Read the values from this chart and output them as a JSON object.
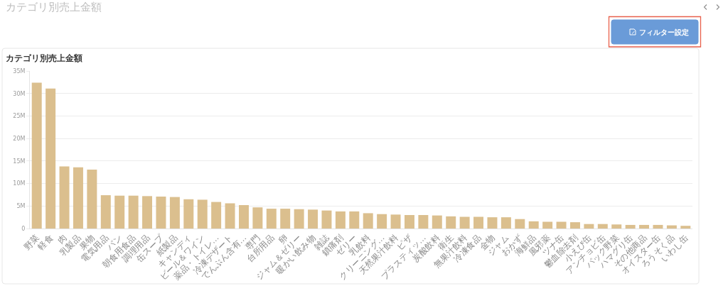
{
  "chart_data": {
    "type": "bar",
    "title": "カテゴリ別売上金額",
    "categories": [
      "野菜",
      "軽食",
      "肉",
      "乳製品",
      "果物",
      "電気用品",
      "パン",
      "朝食用食品",
      "調理用品",
      "缶スープ",
      "紙製品",
      "キャンディ",
      "ビール＆ワイン",
      "薬品・トイレ...",
      "冷凍デザート",
      "でんぷん含有...",
      "専門",
      "台所用品",
      "卵",
      "ジャム＆ゼリー",
      "暖かい飲み物",
      "雑誌",
      "鎮痛剤",
      "ゼリー",
      "乳飲料",
      "クリーニング...",
      "天然果汁飲料",
      "ピザ",
      "プラスティッ...",
      "炭酸飲料",
      "衛生",
      "無果汁飲料",
      "冷凍食品",
      "金物",
      "ジャム",
      "おかず",
      "海鮮品",
      "風邪薬",
      "ツナ缶",
      "鬱血除去剤",
      "小えび缶",
      "アンチョビ缶",
      "パック野菜",
      "ハマグリ缶",
      "その他商品",
      "オイスター缶",
      "ろうそく品",
      "いわし缶"
    ],
    "values": [
      32400000,
      31100000,
      13800000,
      13600000,
      13100000,
      7400000,
      7300000,
      7300000,
      7200000,
      7100000,
      7000000,
      6500000,
      6400000,
      5900000,
      5600000,
      5200000,
      4700000,
      4400000,
      4400000,
      4300000,
      4200000,
      4000000,
      3800000,
      3800000,
      3400000,
      3200000,
      3100000,
      3000000,
      3000000,
      2900000,
      2700000,
      2600000,
      2600000,
      2500000,
      2500000,
      2100000,
      1600000,
      1500000,
      1500000,
      1400000,
      1000000,
      1000000,
      900000,
      800000,
      800000,
      800000,
      700000,
      600000
    ],
    "color": "#dbbf8e",
    "ylim": [
      0,
      35000000
    ],
    "yticks": [
      0,
      {
        "value": 5000000,
        "label": "5M"
      },
      {
        "value": 10000000,
        "label": "10M"
      },
      {
        "value": 15000000,
        "label": "15M"
      },
      {
        "value": 20000000,
        "label": "20M"
      },
      {
        "value": 25000000,
        "label": "25M"
      },
      {
        "value": 30000000,
        "label": "30M"
      },
      {
        "value": 35000000,
        "label": "35M"
      }
    ],
    "grid": "y",
    "annotations": [
      "カテゴリ別売上金額",
      "フィルター設定"
    ]
  }
}
